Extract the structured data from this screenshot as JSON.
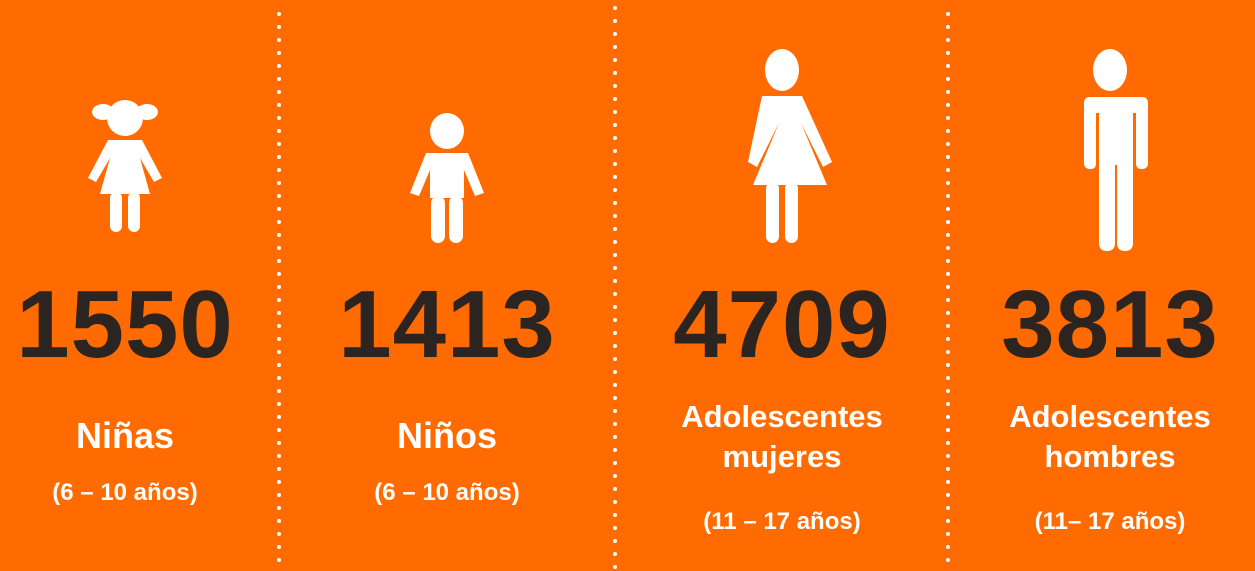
{
  "items": [
    {
      "number": 1550,
      "label": [
        "Niñas"
      ],
      "range": "(6 – 10 años)"
    },
    {
      "number": 1413,
      "label": [
        "Niños"
      ],
      "range": "(6 – 10 años)"
    },
    {
      "number": 4709,
      "label": [
        "Adolescentes",
        "mujeres"
      ],
      "range": "(11 – 17 años)"
    },
    {
      "number": 3813,
      "label": [
        "Adolescentes",
        "hombres"
      ],
      "range": "(11– 17 años)"
    }
  ]
}
